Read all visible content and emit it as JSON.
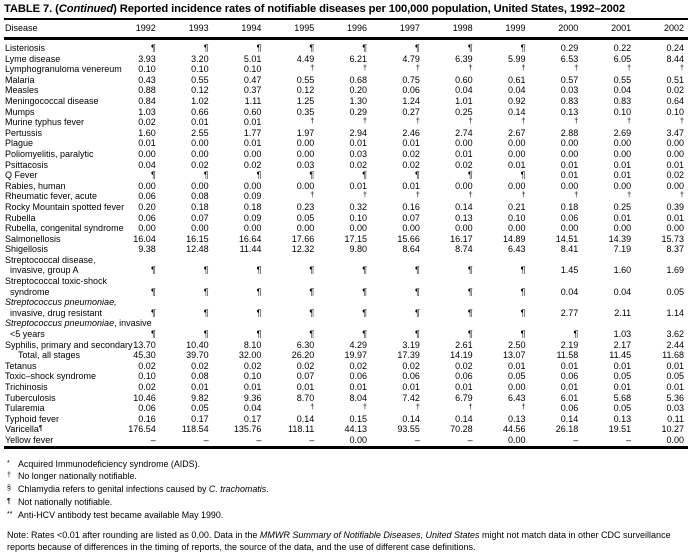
{
  "title": {
    "prefix": "TABLE 7. (",
    "continued": "Continued",
    "rest": ") Reported incidence rates of notifiable diseases per 100,000 population, United States, 1992–2002"
  },
  "table": {
    "first_column": "Disease",
    "years": [
      "1992",
      "1993",
      "1994",
      "1995",
      "1996",
      "1997",
      "1998",
      "1999",
      "2000",
      "2001",
      "2002"
    ],
    "rows": [
      {
        "label": [
          {
            "t": "Listeriosis"
          }
        ],
        "values": [
          "¶",
          "¶",
          "¶",
          "¶",
          "¶",
          "¶",
          "¶",
          "¶",
          "0.29",
          "0.22",
          "0.24"
        ]
      },
      {
        "label": [
          {
            "t": "Lyme disease"
          }
        ],
        "values": [
          "3.93",
          "3.20",
          "5.01",
          "4.49",
          "6.21",
          "4.79",
          "6.39",
          "5.99",
          "6.53",
          "6.05",
          "8.44"
        ]
      },
      {
        "label": [
          {
            "t": "Lymphogranuloma venereum"
          }
        ],
        "values": [
          "0.10",
          "0.10",
          "0.10",
          "†",
          "†",
          "†",
          "†",
          "†",
          "†",
          "†",
          "†"
        ]
      },
      {
        "label": [
          {
            "t": "Malaria"
          }
        ],
        "values": [
          "0.43",
          "0.55",
          "0.47",
          "0.55",
          "0.68",
          "0.75",
          "0.60",
          "0.61",
          "0.57",
          "0.55",
          "0.51"
        ]
      },
      {
        "label": [
          {
            "t": "Measles"
          }
        ],
        "values": [
          "0.88",
          "0.12",
          "0.37",
          "0.12",
          "0.20",
          "0.06",
          "0.04",
          "0.04",
          "0.03",
          "0.04",
          "0.02"
        ]
      },
      {
        "label": [
          {
            "t": "Meningococcal disease"
          }
        ],
        "values": [
          "0.84",
          "1.02",
          "1.11",
          "1.25",
          "1.30",
          "1.24",
          "1.01",
          "0.92",
          "0.83",
          "0.83",
          "0.64"
        ]
      },
      {
        "label": [
          {
            "t": "Mumps"
          }
        ],
        "values": [
          "1.03",
          "0.66",
          "0.60",
          "0.35",
          "0.29",
          "0.27",
          "0.25",
          "0.14",
          "0.13",
          "0.10",
          "0.10"
        ]
      },
      {
        "label": [
          {
            "t": "Murine typhus fever"
          }
        ],
        "values": [
          "0.02",
          "0.01",
          "0.01",
          "†",
          "†",
          "†",
          "†",
          "†",
          "†",
          "†",
          "†"
        ]
      },
      {
        "label": [
          {
            "t": "Pertussis"
          }
        ],
        "values": [
          "1.60",
          "2.55",
          "1.77",
          "1.97",
          "2.94",
          "2.46",
          "2.74",
          "2.67",
          "2.88",
          "2.69",
          "3.47"
        ]
      },
      {
        "label": [
          {
            "t": "Plague"
          }
        ],
        "values": [
          "0.01",
          "0.00",
          "0.01",
          "0.00",
          "0.01",
          "0.01",
          "0.00",
          "0.00",
          "0.00",
          "0.00",
          "0.00"
        ]
      },
      {
        "label": [
          {
            "t": "Poliomyelitis, paralytic"
          }
        ],
        "values": [
          "0.00",
          "0.00",
          "0.00",
          "0.00",
          "0.03",
          "0.02",
          "0.01",
          "0.00",
          "0.00",
          "0.00",
          "0.00"
        ]
      },
      {
        "label": [
          {
            "t": "Psittacosis"
          }
        ],
        "values": [
          "0.04",
          "0.02",
          "0.02",
          "0.03",
          "0.02",
          "0.02",
          "0.02",
          "0.01",
          "0.01",
          "0.01",
          "0.01"
        ]
      },
      {
        "label": [
          {
            "t": "Q Fever"
          }
        ],
        "values": [
          "¶",
          "¶",
          "¶",
          "¶",
          "¶",
          "¶",
          "¶",
          "¶",
          "0.01",
          "0.01",
          "0.02"
        ]
      },
      {
        "label": [
          {
            "t": "Rabies, human"
          }
        ],
        "values": [
          "0.00",
          "0.00",
          "0.00",
          "0.00",
          "0.01",
          "0.01",
          "0.00",
          "0.00",
          "0.00",
          "0.00",
          "0.00"
        ]
      },
      {
        "label": [
          {
            "t": "Rheumatic fever, acute"
          }
        ],
        "values": [
          "0.06",
          "0.08",
          "0.09",
          "†",
          "†",
          "†",
          "†",
          "†",
          "†",
          "†",
          "†"
        ]
      },
      {
        "label": [
          {
            "t": "Rocky Mountain spotted fever"
          }
        ],
        "values": [
          "0.20",
          "0.18",
          "0.18",
          "0.23",
          "0.32",
          "0.16",
          "0.14",
          "0.21",
          "0.18",
          "0.25",
          "0.39"
        ]
      },
      {
        "label": [
          {
            "t": "Rubella"
          }
        ],
        "values": [
          "0.06",
          "0.07",
          "0.09",
          "0.05",
          "0.10",
          "0.07",
          "0.13",
          "0.10",
          "0.06",
          "0.01",
          "0.01"
        ]
      },
      {
        "label": [
          {
            "t": "Rubella, congenital syndrome"
          }
        ],
        "values": [
          "0.00",
          "0.00",
          "0.00",
          "0.00",
          "0.00",
          "0.00",
          "0.00",
          "0.00",
          "0.00",
          "0.00",
          "0.00"
        ]
      },
      {
        "label": [
          {
            "t": "Salmonellosis"
          }
        ],
        "values": [
          "16.04",
          "16.15",
          "16.64",
          "17.66",
          "17.15",
          "15.66",
          "16.17",
          "14.89",
          "14.51",
          "14.39",
          "15.73"
        ]
      },
      {
        "label": [
          {
            "t": "Shigellosis"
          }
        ],
        "values": [
          "9.38",
          "12.48",
          "11.44",
          "12.32",
          "9.80",
          "8.64",
          "8.74",
          "6.43",
          "8.41",
          "7.19",
          "8.37"
        ]
      },
      {
        "label": [
          {
            "t": "Streptococcal disease,"
          }
        ],
        "label2": [
          {
            "t": "invasive, group A"
          }
        ],
        "values": [
          "¶",
          "¶",
          "¶",
          "¶",
          "¶",
          "¶",
          "¶",
          "¶",
          "1.45",
          "1.60",
          "1.69"
        ]
      },
      {
        "label": [
          {
            "t": "Streptococcal toxic-shock"
          }
        ],
        "label2": [
          {
            "t": "syndrome"
          }
        ],
        "values": [
          "¶",
          "¶",
          "¶",
          "¶",
          "¶",
          "¶",
          "¶",
          "¶",
          "0.04",
          "0.04",
          "0.05"
        ]
      },
      {
        "label": [
          {
            "t": "Streptococcus pneumoniae,",
            "i": true
          }
        ],
        "label2": [
          {
            "t": "invasive, drug resistant"
          }
        ],
        "values": [
          "¶",
          "¶",
          "¶",
          "¶",
          "¶",
          "¶",
          "¶",
          "¶",
          "2.77",
          "2.11",
          "1.14"
        ]
      },
      {
        "label": [
          {
            "t": "Streptococcus pneumoniae",
            "i": true
          },
          {
            "t": ", invasive"
          }
        ],
        "label2": [
          {
            "t": "<5 years"
          }
        ],
        "values": [
          "¶",
          "¶",
          "¶",
          "¶",
          "¶",
          "¶",
          "¶",
          "¶",
          "¶",
          "1.03",
          "3.62"
        ]
      },
      {
        "label": [
          {
            "t": "Syphilis, primary and secondary"
          }
        ],
        "values": [
          "13.70",
          "10.40",
          "8.10",
          "6.30",
          "4.29",
          "3.19",
          "2.61",
          "2.50",
          "2.19",
          "2.17",
          "2.44"
        ]
      },
      {
        "label": [
          {
            "t": "Total, all stages"
          }
        ],
        "indent": true,
        "values": [
          "45.30",
          "39.70",
          "32.00",
          "26.20",
          "19.97",
          "17.39",
          "14.19",
          "13.07",
          "11.58",
          "11.45",
          "11.68"
        ]
      },
      {
        "label": [
          {
            "t": "Tetanus"
          }
        ],
        "values": [
          "0.02",
          "0.02",
          "0.02",
          "0.02",
          "0.02",
          "0.02",
          "0.02",
          "0.01",
          "0.01",
          "0.01",
          "0.01"
        ]
      },
      {
        "label": [
          {
            "t": "Toxic–shock syndrome"
          }
        ],
        "values": [
          "0.10",
          "0.08",
          "0.10",
          "0.07",
          "0.06",
          "0.06",
          "0.06",
          "0.05",
          "0.06",
          "0.05",
          "0.05"
        ]
      },
      {
        "label": [
          {
            "t": "Trichinosis"
          }
        ],
        "values": [
          "0.02",
          "0.01",
          "0.01",
          "0.01",
          "0.01",
          "0.01",
          "0.01",
          "0.00",
          "0.01",
          "0.01",
          "0.01"
        ]
      },
      {
        "label": [
          {
            "t": "Tuberculosis"
          }
        ],
        "values": [
          "10.46",
          "9.82",
          "9.36",
          "8.70",
          "8.04",
          "7.42",
          "6.79",
          "6.43",
          "6.01",
          "5.68",
          "5.36"
        ]
      },
      {
        "label": [
          {
            "t": "Tularemia"
          }
        ],
        "values": [
          "0.06",
          "0.05",
          "0.04",
          "†",
          "†",
          "†",
          "†",
          "†",
          "0.06",
          "0.05",
          "0.03"
        ]
      },
      {
        "label": [
          {
            "t": "Typhoid fever"
          }
        ],
        "values": [
          "0.16",
          "0.17",
          "0.17",
          "0.14",
          "0.15",
          "0.14",
          "0.14",
          "0.13",
          "0.14",
          "0.13",
          "0.11"
        ]
      },
      {
        "label": [
          {
            "t": "Varicella"
          },
          {
            "t": "¶",
            "sup": true
          }
        ],
        "values": [
          "176.54",
          "118.54",
          "135.76",
          "118.11",
          "44.13",
          "93.55",
          "70.28",
          "44.56",
          "26.18",
          "19.51",
          "10.27"
        ]
      },
      {
        "label": [
          {
            "t": "Yellow fever"
          }
        ],
        "values": [
          "–",
          "–",
          "–",
          "–",
          "0.00",
          "–",
          "–",
          "0.00",
          "–",
          "–",
          "0.00"
        ]
      }
    ]
  },
  "footnotes": [
    {
      "sym": "*",
      "segments": [
        {
          "t": "Acquired Immunodeficiency syndrome (AIDS)."
        }
      ]
    },
    {
      "sym": "†",
      "segments": [
        {
          "t": "No longer nationally notifiable."
        }
      ]
    },
    {
      "sym": "§",
      "segments": [
        {
          "t": "Chlamydia refers to genital infections caused by "
        },
        {
          "t": "C. trachomatis",
          "i": true
        },
        {
          "t": "."
        }
      ]
    },
    {
      "sym": "¶",
      "segments": [
        {
          "t": "Not nationally notifiable."
        }
      ]
    },
    {
      "sym": "**",
      "segments": [
        {
          "t": "Anti-HCV antibody test became available May 1990."
        }
      ]
    }
  ],
  "note": {
    "segments": [
      {
        "t": "Note: Rates <0.01 after rounding are listed as 0.00. Data in the "
      },
      {
        "t": "MMWR Summary of Notifiable Diseases, United States",
        "i": true
      },
      {
        "t": " might not match data in other CDC surveillance reports because of differences in the timing of reports, the source of the data, and the use of different case definitions."
      }
    ]
  }
}
